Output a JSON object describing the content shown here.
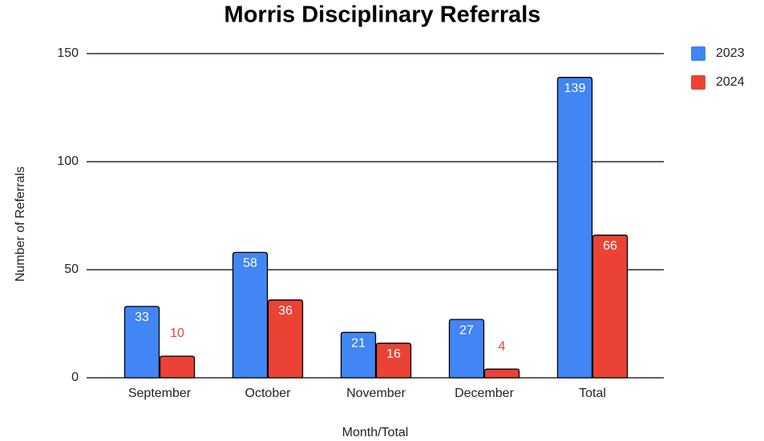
{
  "chart_data": {
    "type": "bar",
    "title": "Morris Disciplinary Referrals",
    "x_label": "Month/Total",
    "y_label": "Number of Referrals",
    "categories": [
      "September",
      "October",
      "November",
      "December",
      "Total"
    ],
    "series": [
      {
        "name": "2023",
        "color": "#4285f4",
        "values": [
          33,
          58,
          21,
          27,
          139
        ]
      },
      {
        "name": "2024",
        "color": "#ea4335",
        "values": [
          10,
          36,
          16,
          4,
          66
        ]
      }
    ],
    "ylim": [
      0,
      150
    ],
    "yticks": [
      0,
      50,
      100,
      150
    ],
    "grid": true,
    "legend": "top-right"
  }
}
